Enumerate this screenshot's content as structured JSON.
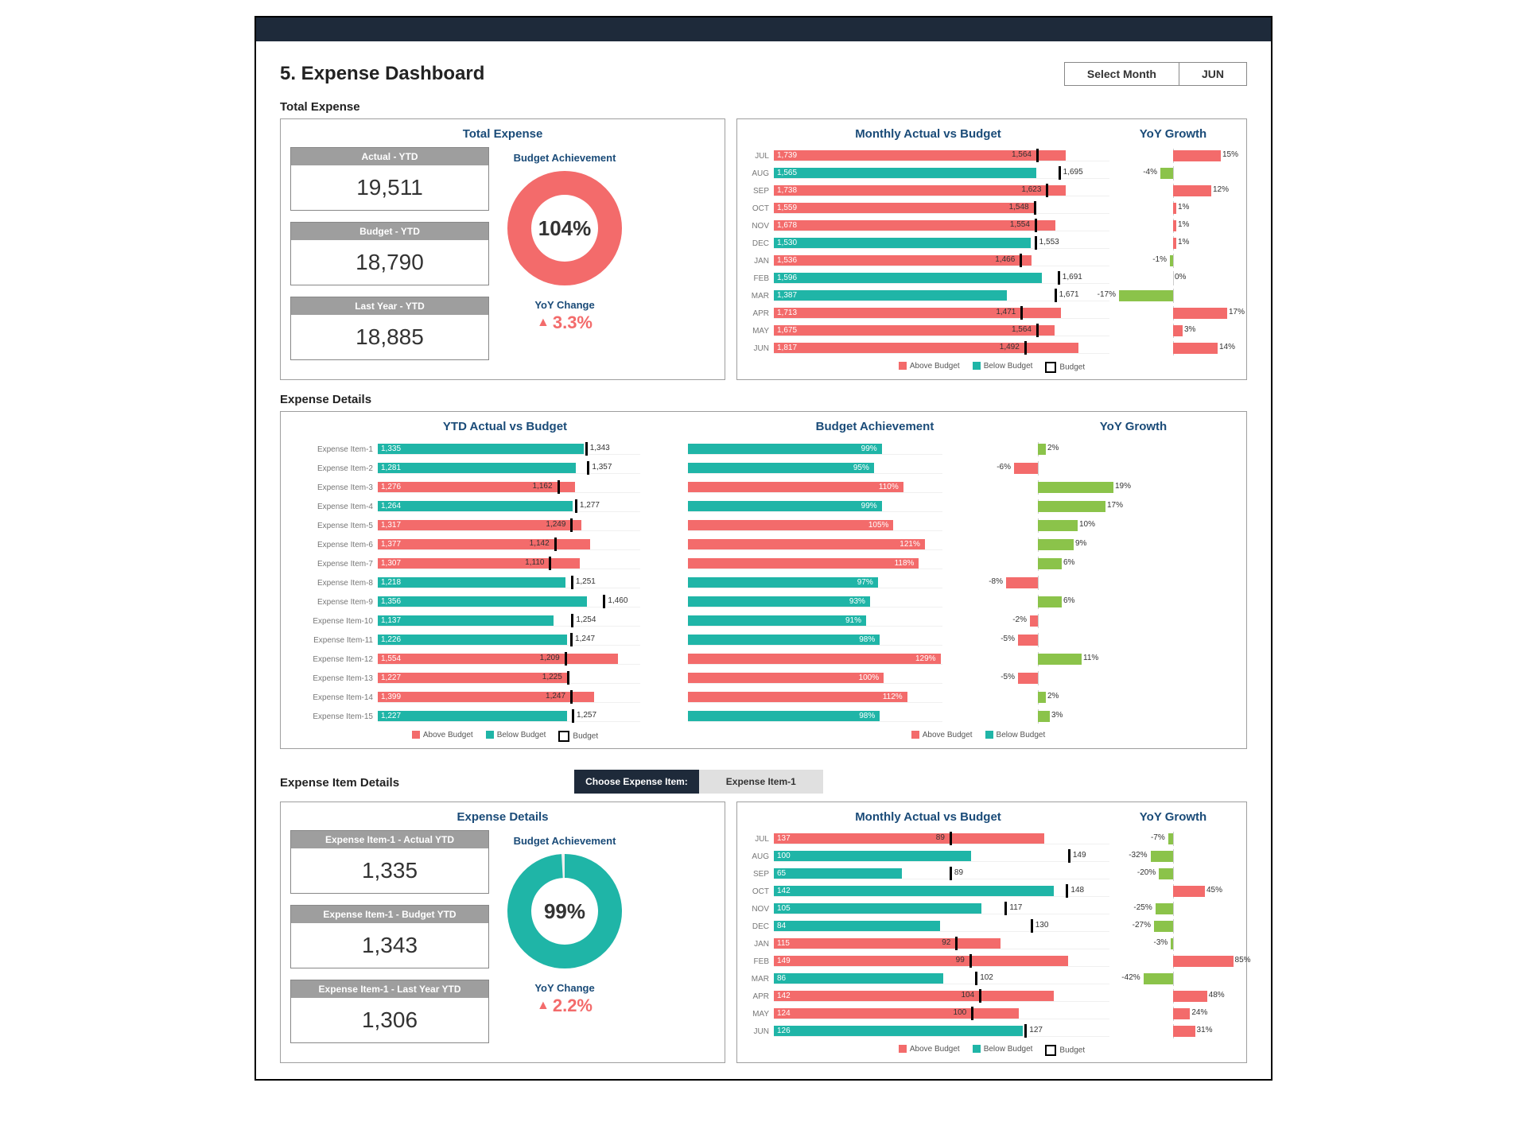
{
  "page": {
    "title": "5. Expense Dashboard",
    "select_month_label": "Select Month",
    "selected_month": "JUN"
  },
  "colors": {
    "navy": "#1e2a3a",
    "teal": "#1fb5a7",
    "coral": "#f36b6b",
    "green": "#8bc34a",
    "budget_marker": "#000000",
    "grid": "#d9d9d9"
  },
  "sections": {
    "total_title": "Total Expense",
    "details_title": "Expense Details",
    "item_details_title": "Expense Item Details",
    "chooser_label": "Choose Expense Item:",
    "chooser_value": "Expense Item-1"
  },
  "total": {
    "panel_title": "Total Expense",
    "kpis": [
      {
        "head": "Actual - YTD",
        "val": "19,511"
      },
      {
        "head": "Budget - YTD",
        "val": "18,790"
      },
      {
        "head": "Last Year - YTD",
        "val": "18,885"
      }
    ],
    "donut": {
      "label": "Budget Achievement",
      "value": 104,
      "text": "104%",
      "color": "#f36b6b",
      "track": "#eeeeee"
    },
    "yoy": {
      "label": "YoY Change",
      "value": 3.3,
      "text": "3.3%",
      "color": "#f36b6b"
    },
    "right_titles": {
      "left": "Monthly Actual vs Budget",
      "right": "YoY Growth"
    },
    "months_scale": 2000,
    "months": [
      {
        "m": "JUL",
        "actual": 1739,
        "budget": 1564,
        "status": "above",
        "yoy": 15
      },
      {
        "m": "AUG",
        "actual": 1565,
        "budget": 1695,
        "status": "below",
        "yoy": -4
      },
      {
        "m": "SEP",
        "actual": 1738,
        "budget": 1623,
        "status": "above",
        "yoy": 12
      },
      {
        "m": "OCT",
        "actual": 1559,
        "budget": 1548,
        "status": "above",
        "yoy": 1
      },
      {
        "m": "NOV",
        "actual": 1678,
        "budget": 1554,
        "status": "above",
        "yoy": 1
      },
      {
        "m": "DEC",
        "actual": 1530,
        "budget": 1553,
        "status": "below",
        "yoy": 1
      },
      {
        "m": "JAN",
        "actual": 1536,
        "budget": 1466,
        "status": "above",
        "yoy": -1
      },
      {
        "m": "FEB",
        "actual": 1596,
        "budget": 1691,
        "status": "below",
        "yoy": 0
      },
      {
        "m": "MAR",
        "actual": 1387,
        "budget": 1671,
        "status": "below",
        "yoy": -17
      },
      {
        "m": "APR",
        "actual": 1713,
        "budget": 1471,
        "status": "above",
        "yoy": 17
      },
      {
        "m": "MAY",
        "actual": 1675,
        "budget": 1564,
        "status": "above",
        "yoy": 3
      },
      {
        "m": "JUN",
        "actual": 1817,
        "budget": 1492,
        "status": "above",
        "yoy": 14
      }
    ],
    "legend": {
      "above": "Above Budget",
      "below": "Below Budget",
      "budget": "Budget"
    }
  },
  "details": {
    "titles": {
      "left": "YTD Actual vs Budget",
      "mid": "Budget Achievement",
      "right": "YoY Growth"
    },
    "scale": 1700,
    "items": [
      {
        "name": "Expense Item-1",
        "actual": 1335,
        "budget": 1343,
        "ach": 99,
        "yoy": 2
      },
      {
        "name": "Expense Item-2",
        "actual": 1281,
        "budget": 1357,
        "ach": 95,
        "yoy": -6
      },
      {
        "name": "Expense Item-3",
        "actual": 1276,
        "budget": 1162,
        "ach": 110,
        "yoy": 19
      },
      {
        "name": "Expense Item-4",
        "actual": 1264,
        "budget": 1277,
        "ach": 99,
        "yoy": 17
      },
      {
        "name": "Expense Item-5",
        "actual": 1317,
        "budget": 1249,
        "ach": 105,
        "yoy": 10
      },
      {
        "name": "Expense Item-6",
        "actual": 1377,
        "budget": 1142,
        "ach": 121,
        "yoy": 9
      },
      {
        "name": "Expense Item-7",
        "actual": 1307,
        "budget": 1110,
        "ach": 118,
        "yoy": 6
      },
      {
        "name": "Expense Item-8",
        "actual": 1218,
        "budget": 1251,
        "ach": 97,
        "yoy": -8
      },
      {
        "name": "Expense Item-9",
        "actual": 1356,
        "budget": 1460,
        "ach": 93,
        "yoy": 6
      },
      {
        "name": "Expense Item-10",
        "actual": 1137,
        "budget": 1254,
        "ach": 91,
        "yoy": -2
      },
      {
        "name": "Expense Item-11",
        "actual": 1226,
        "budget": 1247,
        "ach": 98,
        "yoy": -5
      },
      {
        "name": "Expense Item-12",
        "actual": 1554,
        "budget": 1209,
        "ach": 129,
        "yoy": 11
      },
      {
        "name": "Expense Item-13",
        "actual": 1227,
        "budget": 1225,
        "ach": 100,
        "yoy": -5
      },
      {
        "name": "Expense Item-14",
        "actual": 1399,
        "budget": 1247,
        "ach": 112,
        "yoy": 2
      },
      {
        "name": "Expense Item-15",
        "actual": 1227,
        "budget": 1257,
        "ach": 98,
        "yoy": 3
      }
    ],
    "legend_left": {
      "above": "Above Budget",
      "below": "Below Budget",
      "budget": "Budget"
    },
    "legend_right": {
      "above": "Above Budget",
      "below": "Below Budget"
    }
  },
  "item": {
    "panel_title": "Expense Details",
    "kpis": [
      {
        "head": "Expense Item-1 - Actual YTD",
        "val": "1,335"
      },
      {
        "head": "Expense Item-1 - Budget YTD",
        "val": "1,343"
      },
      {
        "head": "Expense Item-1 - Last Year YTD",
        "val": "1,306"
      }
    ],
    "donut": {
      "label": "Budget Achievement",
      "value": 99,
      "text": "99%",
      "color": "#1fb5a7",
      "track": "#eeeeee"
    },
    "yoy": {
      "label": "YoY Change",
      "value": 2.2,
      "text": "2.2%",
      "color": "#f36b6b"
    },
    "right_titles": {
      "left": "Monthly Actual vs Budget",
      "right": "YoY Growth"
    },
    "months_scale": 170,
    "months": [
      {
        "m": "JUL",
        "actual": 137,
        "budget": 89,
        "status": "above",
        "yoy": -7
      },
      {
        "m": "AUG",
        "actual": 100,
        "budget": 149,
        "status": "below",
        "yoy": -32
      },
      {
        "m": "SEP",
        "actual": 65,
        "budget": 89,
        "status": "below",
        "yoy": -20
      },
      {
        "m": "OCT",
        "actual": 142,
        "budget": 148,
        "status": "below",
        "yoy": 45
      },
      {
        "m": "NOV",
        "actual": 105,
        "budget": 117,
        "status": "below",
        "yoy": -25
      },
      {
        "m": "DEC",
        "actual": 84,
        "budget": 130,
        "status": "below",
        "yoy": -27
      },
      {
        "m": "JAN",
        "actual": 115,
        "budget": 92,
        "status": "above",
        "yoy": -3
      },
      {
        "m": "FEB",
        "actual": 149,
        "budget": 99,
        "status": "above",
        "yoy": 85
      },
      {
        "m": "MAR",
        "actual": 86,
        "budget": 102,
        "status": "below",
        "yoy": -42
      },
      {
        "m": "APR",
        "actual": 142,
        "budget": 104,
        "status": "above",
        "yoy": 48
      },
      {
        "m": "MAY",
        "actual": 124,
        "budget": 100,
        "status": "above",
        "yoy": 24
      },
      {
        "m": "JUN",
        "actual": 126,
        "budget": 127,
        "status": "below",
        "yoy": 31
      }
    ],
    "legend": {
      "above": "Above Budget",
      "below": "Below Budget",
      "budget": "Budget"
    }
  }
}
